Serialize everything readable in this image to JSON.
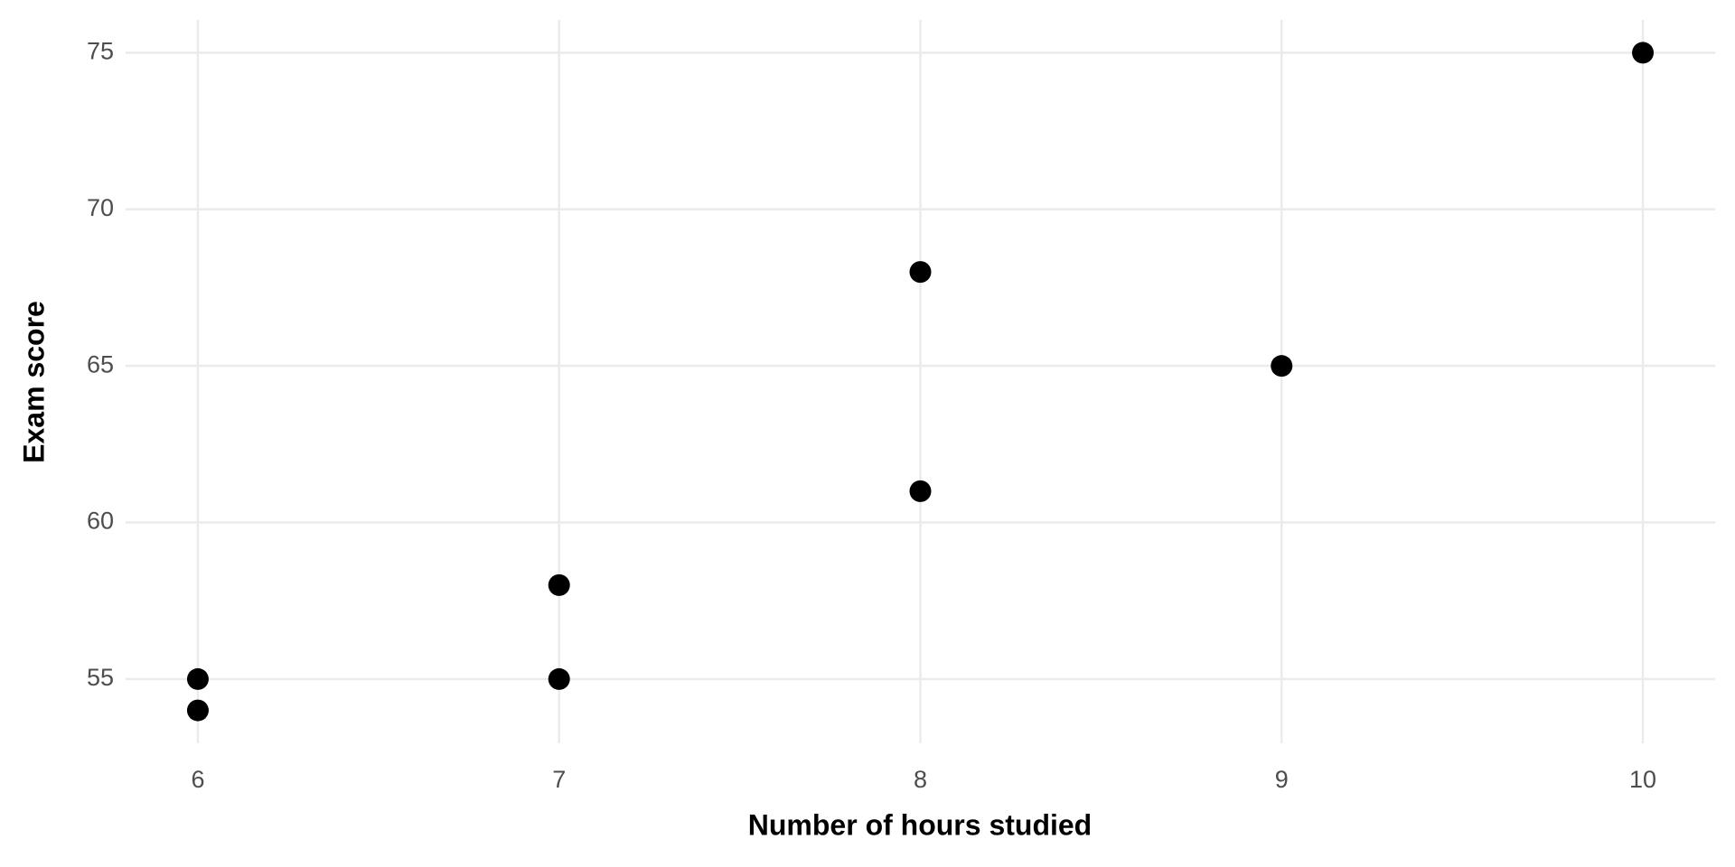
{
  "chart_data": {
    "type": "scatter",
    "x_label": "Number of hours studied",
    "y_label": "Exam score",
    "x": [
      6,
      6,
      7,
      7,
      8,
      8,
      9,
      10
    ],
    "values": [
      55,
      54,
      58,
      55,
      68,
      61,
      65,
      75
    ],
    "color": "#000000",
    "xlim": [
      5.8,
      10.2
    ],
    "xticks": [
      6,
      7,
      8,
      9,
      10
    ],
    "ylim": [
      52.95,
      76.05
    ],
    "yticks": [
      55,
      60,
      65,
      70,
      75
    ],
    "grid": true
  }
}
